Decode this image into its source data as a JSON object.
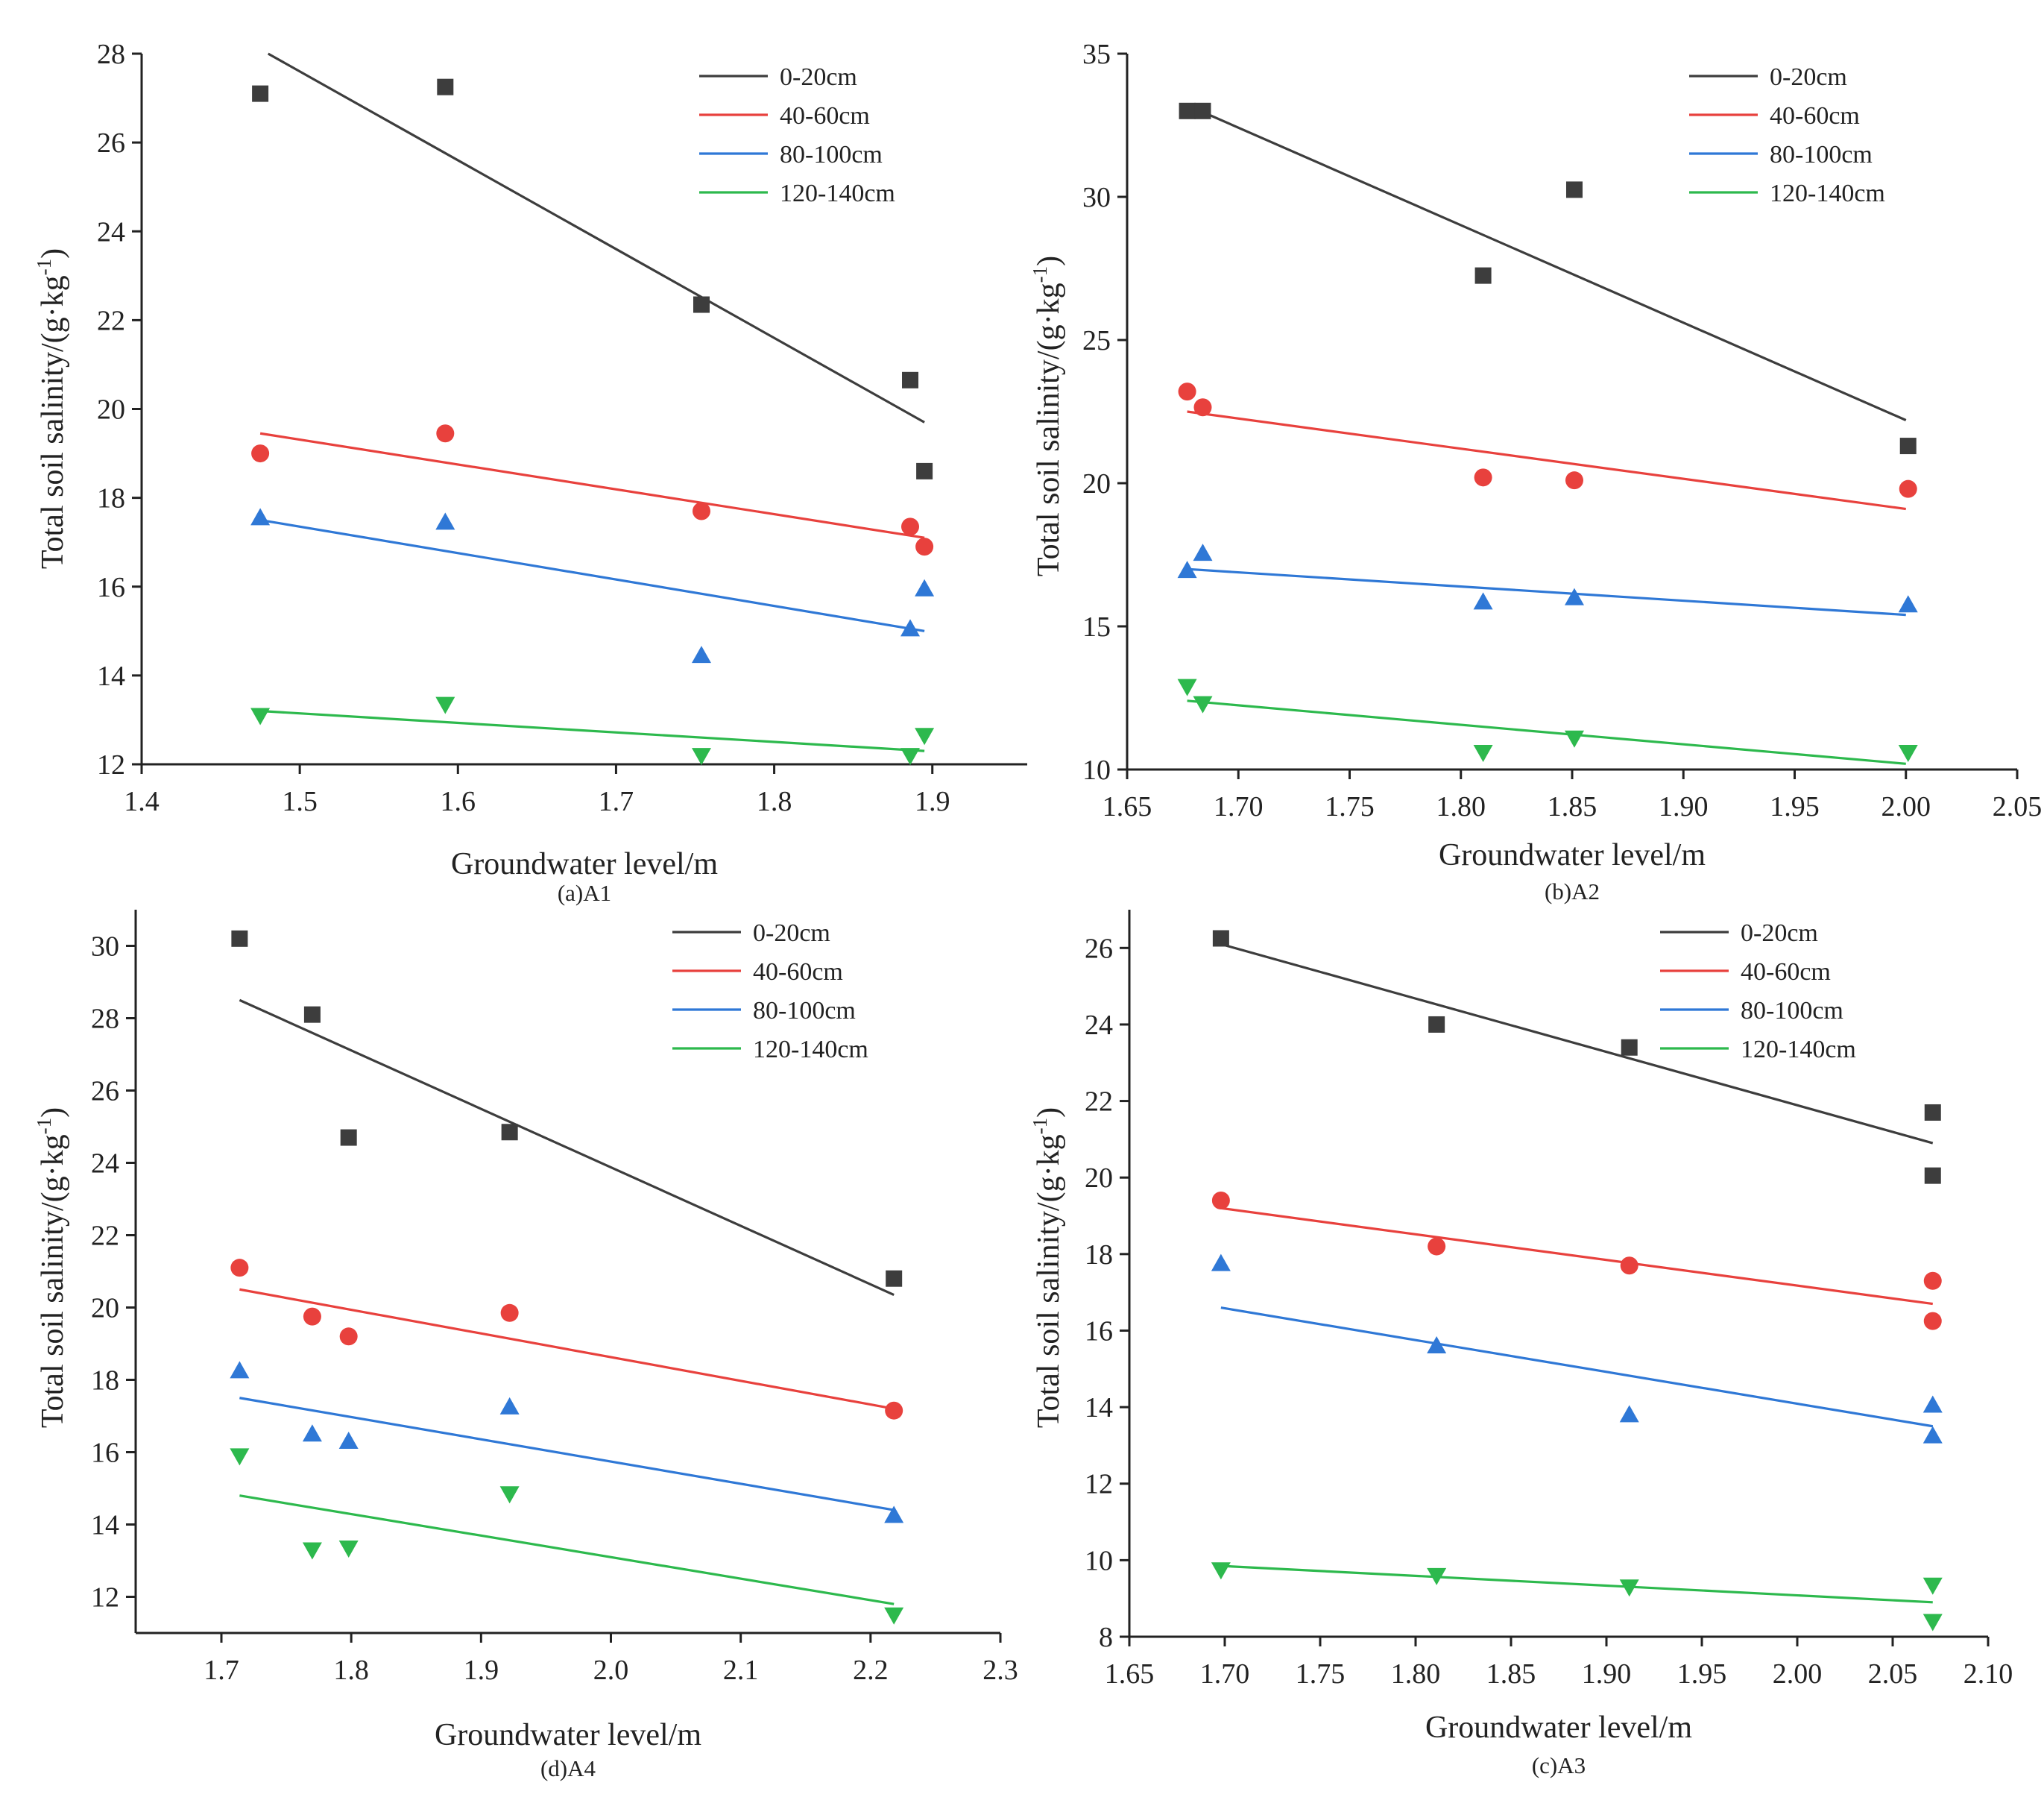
{
  "chart_data": [
    {
      "type": "scatter",
      "caption": "(a)A1",
      "xlabel": "Groundwater level/m",
      "ylabel": {
        "main": "Total soil salinity/(g·kg",
        "sup": "-1",
        "end": ")"
      },
      "xlim": [
        1.4,
        1.96
      ],
      "ylim": [
        12,
        28
      ],
      "xticks": [
        "1.4",
        "1.5",
        "1.6",
        "1.7",
        "1.8",
        "1.9"
      ],
      "yticks": [
        "12",
        "14",
        "16",
        "18",
        "20",
        "22",
        "24",
        "26",
        "28"
      ],
      "legend_position": "top-right",
      "series": [
        {
          "name": "0-20cm",
          "color": "#3d3d3d",
          "marker": "square",
          "x": [
            1.475,
            1.592,
            1.754,
            1.886,
            1.895
          ],
          "y": [
            27.1,
            27.25,
            22.35,
            20.65,
            18.6
          ],
          "fit": [
            [
              1.48,
              28.0
            ],
            [
              1.895,
              19.7
            ]
          ]
        },
        {
          "name": "40-60cm",
          "color": "#e8413d",
          "marker": "circle",
          "x": [
            1.475,
            1.592,
            1.754,
            1.886,
            1.895
          ],
          "y": [
            19.0,
            19.45,
            17.7,
            17.35,
            16.9
          ],
          "fit": [
            [
              1.475,
              19.45
            ],
            [
              1.895,
              17.1
            ]
          ]
        },
        {
          "name": "80-100cm",
          "color": "#2f78d6",
          "marker": "triangle-up",
          "x": [
            1.475,
            1.592,
            1.754,
            1.886,
            1.895
          ],
          "y": [
            17.55,
            17.45,
            14.45,
            15.05,
            15.95
          ],
          "fit": [
            [
              1.475,
              17.5
            ],
            [
              1.895,
              15.0
            ]
          ]
        },
        {
          "name": "120-140cm",
          "color": "#2db94d",
          "marker": "triangle-down",
          "x": [
            1.475,
            1.592,
            1.754,
            1.886,
            1.895
          ],
          "y": [
            13.1,
            13.35,
            12.2,
            12.2,
            12.65
          ],
          "fit": [
            [
              1.475,
              13.2
            ],
            [
              1.895,
              12.3
            ]
          ]
        }
      ]
    },
    {
      "type": "scatter",
      "caption": "(b)A2",
      "xlabel": "Groundwater level/m",
      "ylabel": {
        "main": "Total soil salinity/(g·kg",
        "sup": "-1",
        "end": ")"
      },
      "xlim": [
        1.65,
        2.05
      ],
      "ylim": [
        10,
        35
      ],
      "xticks": [
        "1.65",
        "1.70",
        "1.75",
        "1.80",
        "1.85",
        "1.90",
        "1.95",
        "2.00",
        "2.05"
      ],
      "yticks": [
        "10",
        "15",
        "20",
        "25",
        "30",
        "35"
      ],
      "legend_position": "top-right",
      "series": [
        {
          "name": "0-20cm",
          "color": "#3d3d3d",
          "marker": "square",
          "x": [
            1.677,
            1.684,
            1.81,
            1.851,
            2.001
          ],
          "y": [
            33.0,
            33.0,
            27.25,
            30.25,
            21.3
          ],
          "fit": [
            [
              1.677,
              33.2
            ],
            [
              2.0,
              22.2
            ]
          ]
        },
        {
          "name": "40-60cm",
          "color": "#e8413d",
          "marker": "circle",
          "x": [
            1.677,
            1.684,
            1.81,
            1.851,
            2.001
          ],
          "y": [
            23.2,
            22.65,
            20.2,
            20.1,
            19.8
          ],
          "fit": [
            [
              1.677,
              22.5
            ],
            [
              2.0,
              19.1
            ]
          ]
        },
        {
          "name": "80-100cm",
          "color": "#2f78d6",
          "marker": "triangle-up",
          "x": [
            1.677,
            1.684,
            1.81,
            1.851,
            2.001
          ],
          "y": [
            16.95,
            17.55,
            15.85,
            16.0,
            15.75
          ],
          "fit": [
            [
              1.677,
              17.0
            ],
            [
              2.0,
              15.4
            ]
          ]
        },
        {
          "name": "120-140cm",
          "color": "#2db94d",
          "marker": "triangle-down",
          "x": [
            1.677,
            1.684,
            1.81,
            1.851,
            2.001
          ],
          "y": [
            12.9,
            12.3,
            10.6,
            11.1,
            10.6
          ],
          "fit": [
            [
              1.677,
              12.4
            ],
            [
              2.0,
              10.2
            ]
          ]
        }
      ]
    },
    {
      "type": "scatter",
      "caption": "(d)A4",
      "xlabel": "Groundwater level/m",
      "ylabel": {
        "main": "Total soil salinity/(g·kg",
        "sup": "-1",
        "end": ")"
      },
      "xlim": [
        1.65,
        2.3
      ],
      "ylim": [
        11,
        31
      ],
      "xticks": [
        "1.7",
        "1.8",
        "1.9",
        "2.0",
        "2.1",
        "2.2",
        "2.3"
      ],
      "yticks": [
        "12",
        "14",
        "16",
        "18",
        "20",
        "22",
        "24",
        "26",
        "28",
        "30"
      ],
      "legend_position": "top-right",
      "series": [
        {
          "name": "0-20cm",
          "color": "#3d3d3d",
          "marker": "square",
          "x": [
            1.714,
            1.77,
            1.798,
            1.922,
            2.218
          ],
          "y": [
            30.2,
            28.1,
            24.7,
            24.85,
            20.8
          ],
          "fit": [
            [
              1.714,
              28.5
            ],
            [
              2.218,
              20.35
            ]
          ]
        },
        {
          "name": "40-60cm",
          "color": "#e8413d",
          "marker": "circle",
          "x": [
            1.714,
            1.77,
            1.798,
            1.922,
            2.218
          ],
          "y": [
            21.1,
            19.75,
            19.2,
            19.85,
            17.15
          ],
          "fit": [
            [
              1.714,
              20.5
            ],
            [
              2.218,
              17.2
            ]
          ]
        },
        {
          "name": "80-100cm",
          "color": "#2f78d6",
          "marker": "triangle-up",
          "x": [
            1.714,
            1.77,
            1.798,
            1.922,
            2.218
          ],
          "y": [
            18.25,
            16.5,
            16.3,
            17.25,
            14.25
          ],
          "fit": [
            [
              1.714,
              17.5
            ],
            [
              2.218,
              14.4
            ]
          ]
        },
        {
          "name": "120-140cm",
          "color": "#2db94d",
          "marker": "triangle-down",
          "x": [
            1.714,
            1.77,
            1.798,
            1.922,
            2.218
          ],
          "y": [
            15.9,
            13.3,
            13.35,
            14.85,
            11.5
          ],
          "fit": [
            [
              1.714,
              14.8
            ],
            [
              2.218,
              11.8
            ]
          ]
        }
      ]
    },
    {
      "type": "scatter",
      "caption": "(c)A3",
      "xlabel": "Groundwater level/m",
      "ylabel": {
        "main": "Total soil salinity/(g·kg",
        "sup": "-1",
        "end": ")"
      },
      "xlim": [
        1.65,
        2.1
      ],
      "ylim": [
        8,
        27
      ],
      "xticks": [
        "1.65",
        "1.70",
        "1.75",
        "1.80",
        "1.85",
        "1.90",
        "1.95",
        "2.00",
        "2.05",
        "2.10"
      ],
      "yticks": [
        "8",
        "10",
        "12",
        "14",
        "16",
        "18",
        "20",
        "22",
        "24",
        "26"
      ],
      "legend_position": "top-right",
      "series": [
        {
          "name": "0-20cm",
          "color": "#3d3d3d",
          "marker": "square",
          "x": [
            1.698,
            1.811,
            1.912,
            2.071,
            2.071
          ],
          "y": [
            26.25,
            24.0,
            23.4,
            21.7,
            20.05
          ],
          "fit": [
            [
              1.698,
              26.1
            ],
            [
              2.071,
              20.9
            ]
          ]
        },
        {
          "name": "40-60cm",
          "color": "#e8413d",
          "marker": "circle",
          "x": [
            1.698,
            1.811,
            1.912,
            2.071,
            2.071
          ],
          "y": [
            19.4,
            18.2,
            17.7,
            17.3,
            16.25
          ],
          "fit": [
            [
              1.698,
              19.2
            ],
            [
              2.071,
              16.7
            ]
          ]
        },
        {
          "name": "80-100cm",
          "color": "#2f78d6",
          "marker": "triangle-up",
          "x": [
            1.698,
            1.811,
            1.912,
            2.071,
            2.071
          ],
          "y": [
            17.75,
            15.6,
            13.8,
            14.05,
            13.25
          ],
          "fit": [
            [
              1.698,
              16.6
            ],
            [
              2.071,
              13.5
            ]
          ]
        },
        {
          "name": "120-140cm",
          "color": "#2db94d",
          "marker": "triangle-down",
          "x": [
            1.698,
            1.811,
            1.912,
            2.071,
            2.071
          ],
          "y": [
            9.75,
            9.6,
            9.3,
            9.35,
            8.4
          ],
          "fit": [
            [
              1.698,
              9.85
            ],
            [
              2.071,
              8.9
            ]
          ]
        }
      ]
    }
  ]
}
